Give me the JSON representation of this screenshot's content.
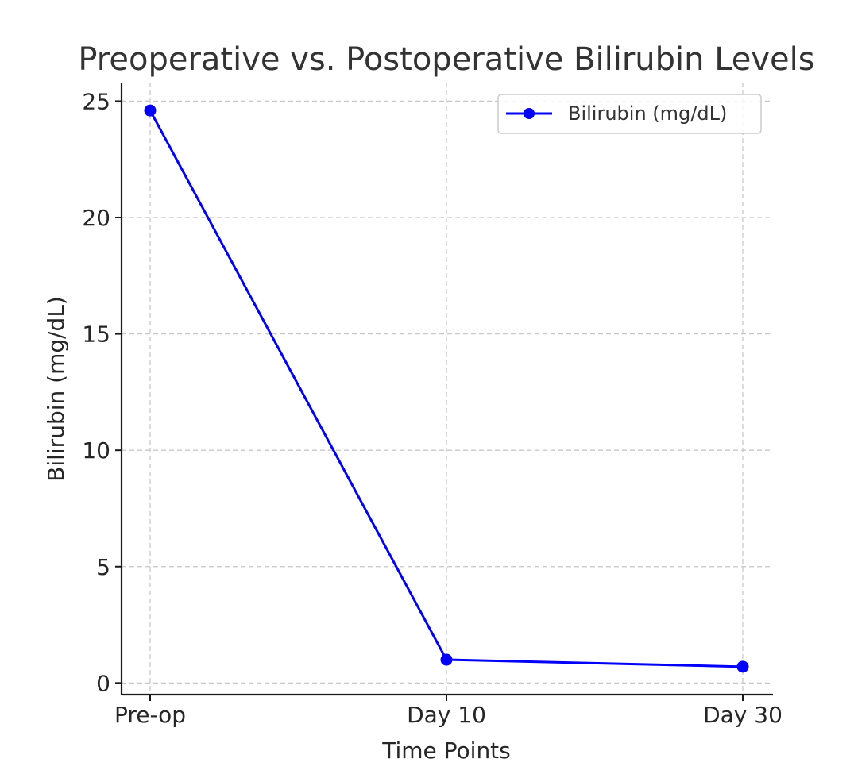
{
  "chart_data": {
    "type": "line",
    "title": "Preoperative vs. Postoperative Bilirubin Levels",
    "xlabel": "Time Points",
    "ylabel": "Bilirubin (mg/dL)",
    "categories": [
      "Pre-op",
      "Day 10",
      "Day 30"
    ],
    "series": [
      {
        "name": "Bilirubin (mg/dL)",
        "values": [
          24.6,
          1.0,
          0.7
        ],
        "color": "#0000ff",
        "marker": "circle"
      }
    ],
    "ylim": [
      -0.5,
      25.8
    ],
    "yticks": [
      0,
      5,
      10,
      15,
      20,
      25
    ],
    "grid": true,
    "legend": "top-right"
  }
}
